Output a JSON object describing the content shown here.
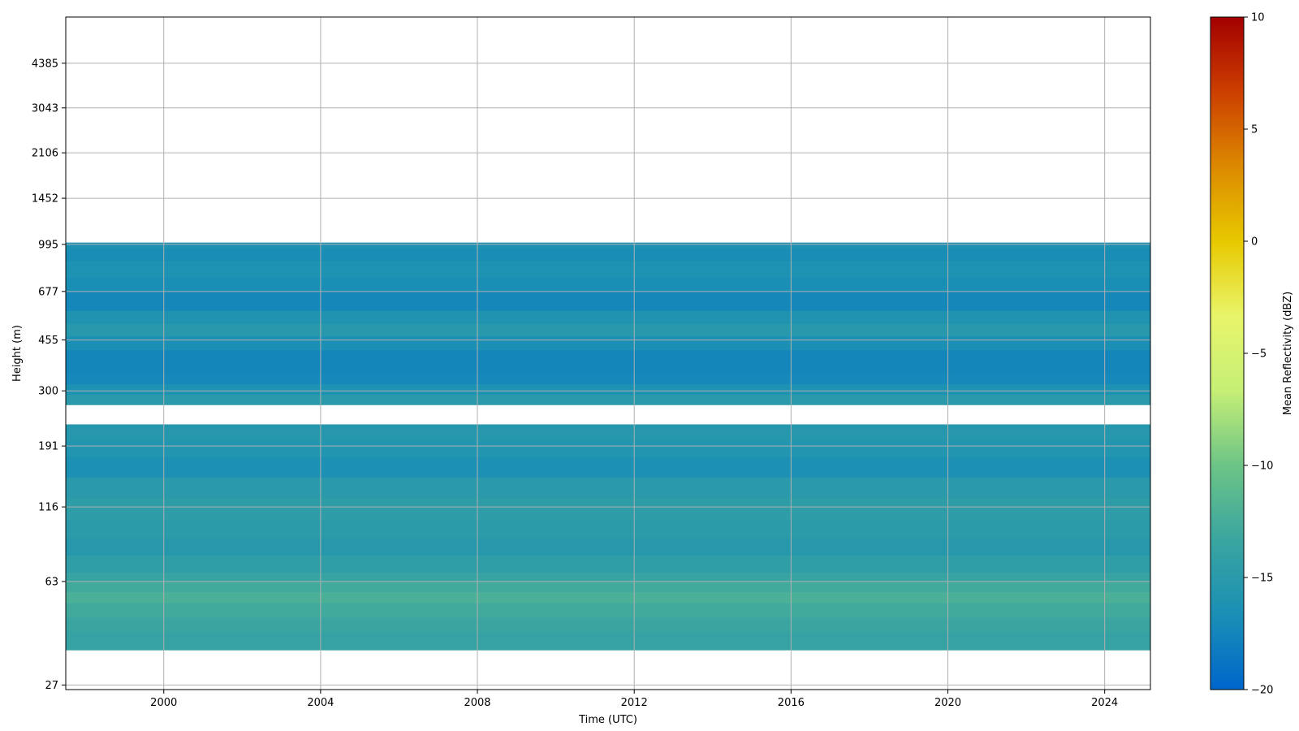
{
  "chart_data": {
    "type": "heatmap",
    "title": "",
    "xlabel": "Time (UTC)",
    "ylabel": "Height (m)",
    "x_ticks": [
      "2000",
      "2004",
      "2008",
      "2012",
      "2016",
      "2020",
      "2024"
    ],
    "xlim": [
      "1997-07",
      "2025-03"
    ],
    "y_ticks": [
      "27",
      "63",
      "116",
      "191",
      "300",
      "455",
      "677",
      "995",
      "1452",
      "2106",
      "3043",
      "4385"
    ],
    "y_scale": "log",
    "ylim": [
      26,
      6400
    ],
    "grid": true,
    "colorbar": {
      "label": "Mean Reflectivity (dBZ)",
      "min": -20,
      "max": 10,
      "ticks": [
        "10",
        "5",
        "0",
        "−5",
        "−10",
        "−15",
        "−20"
      ],
      "colors": [
        "#0066cc",
        "#1a8fb5",
        "#3aa5a0",
        "#6cc486",
        "#c5ef76",
        "#e8f56a",
        "#e7c900",
        "#dc8a00",
        "#cc3f00",
        "#a30000"
      ]
    },
    "time_constant": true,
    "layers": [
      {
        "bottom": 36,
        "top": 42,
        "dbz": -13.8
      },
      {
        "bottom": 42,
        "top": 47,
        "dbz": -13.3
      },
      {
        "bottom": 47,
        "top": 53,
        "dbz": -12.8
      },
      {
        "bottom": 53,
        "top": 58,
        "dbz": -12.2
      },
      {
        "bottom": 58,
        "top": 63,
        "dbz": -12.8
      },
      {
        "bottom": 63,
        "top": 68,
        "dbz": -13.6
      },
      {
        "bottom": 68,
        "top": 78,
        "dbz": -14.4
      },
      {
        "bottom": 78,
        "top": 90,
        "dbz": -15.3
      },
      {
        "bottom": 90,
        "top": 105,
        "dbz": -14.8
      },
      {
        "bottom": 105,
        "top": 125,
        "dbz": -14.6
      },
      {
        "bottom": 125,
        "top": 148,
        "dbz": -15.0
      },
      {
        "bottom": 148,
        "top": 175,
        "dbz": -16.4
      },
      {
        "bottom": 175,
        "top": 200,
        "dbz": -15.8
      },
      {
        "bottom": 200,
        "top": 228,
        "dbz": -15.4
      },
      {
        "bottom": 268,
        "top": 292,
        "dbz": -15.0
      },
      {
        "bottom": 292,
        "top": 318,
        "dbz": -16.2
      },
      {
        "bottom": 318,
        "top": 350,
        "dbz": -17.2
      },
      {
        "bottom": 350,
        "top": 420,
        "dbz": -17.4
      },
      {
        "bottom": 420,
        "top": 470,
        "dbz": -16.5
      },
      {
        "bottom": 470,
        "top": 520,
        "dbz": -15.2
      },
      {
        "bottom": 520,
        "top": 580,
        "dbz": -16.0
      },
      {
        "bottom": 580,
        "top": 680,
        "dbz": -17.3
      },
      {
        "bottom": 680,
        "top": 760,
        "dbz": -16.7
      },
      {
        "bottom": 760,
        "top": 875,
        "dbz": -16.2
      },
      {
        "bottom": 875,
        "top": 960,
        "dbz": -16.8
      },
      {
        "bottom": 960,
        "top": 1010,
        "dbz": -16.4
      }
    ]
  }
}
